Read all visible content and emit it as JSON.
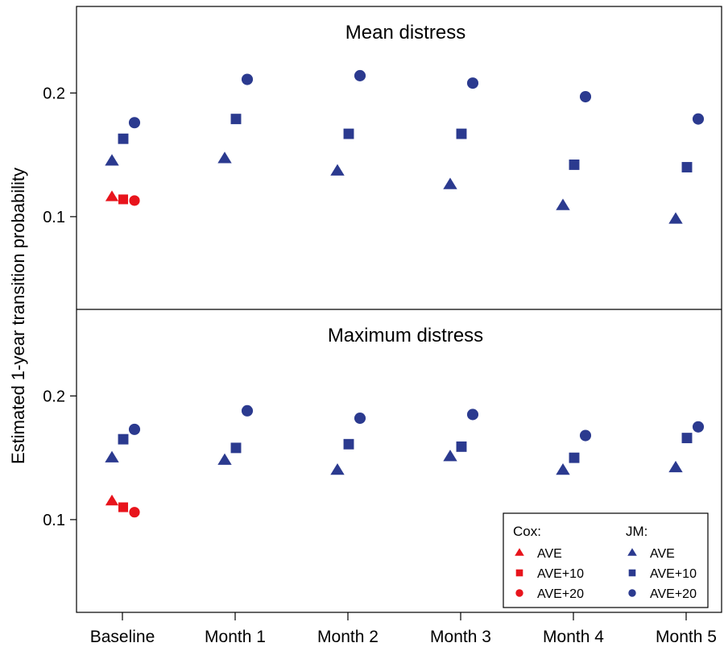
{
  "chart_data": {
    "type": "scatter",
    "ylabel": "Estimated 1-year transition probability",
    "categories": [
      "Baseline",
      "Month 1",
      "Month 2",
      "Month 3",
      "Month 4",
      "Month 5"
    ],
    "y_ticks": [
      "0.1",
      "0.2"
    ],
    "colors": {
      "cox": "#e8141c",
      "jm": "#2b3a8f"
    },
    "panels": [
      {
        "title": "Mean distress",
        "ylim": [
          0.025,
          0.27
        ],
        "series": [
          {
            "model": "jm",
            "label": "AVE",
            "marker": "triangle",
            "values": [
              0.145,
              0.147,
              0.137,
              0.126,
              0.109,
              0.098
            ]
          },
          {
            "model": "jm",
            "label": "AVE+10",
            "marker": "square",
            "values": [
              0.163,
              0.179,
              0.167,
              0.167,
              0.142,
              0.14
            ]
          },
          {
            "model": "jm",
            "label": "AVE+20",
            "marker": "circle",
            "values": [
              0.176,
              0.211,
              0.214,
              0.208,
              0.197,
              0.179
            ]
          },
          {
            "model": "cox",
            "label": "AVE",
            "marker": "triangle",
            "values": [
              0.116
            ]
          },
          {
            "model": "cox",
            "label": "AVE+10",
            "marker": "square",
            "values": [
              0.114
            ]
          },
          {
            "model": "cox",
            "label": "AVE+20",
            "marker": "circle",
            "values": [
              0.113
            ]
          }
        ]
      },
      {
        "title": "Maximum distress",
        "ylim": [
          0.025,
          0.27
        ],
        "series": [
          {
            "model": "jm",
            "label": "AVE",
            "marker": "triangle",
            "values": [
              0.15,
              0.148,
              0.14,
              0.151,
              0.14,
              0.142
            ]
          },
          {
            "model": "jm",
            "label": "AVE+10",
            "marker": "square",
            "values": [
              0.165,
              0.158,
              0.161,
              0.159,
              0.15,
              0.166
            ]
          },
          {
            "model": "jm",
            "label": "AVE+20",
            "marker": "circle",
            "values": [
              0.173,
              0.188,
              0.182,
              0.185,
              0.168,
              0.175
            ]
          },
          {
            "model": "cox",
            "label": "AVE",
            "marker": "triangle",
            "values": [
              0.115
            ]
          },
          {
            "model": "cox",
            "label": "AVE+10",
            "marker": "square",
            "values": [
              0.11
            ]
          },
          {
            "model": "cox",
            "label": "AVE+20",
            "marker": "circle",
            "values": [
              0.106
            ]
          }
        ]
      }
    ],
    "legend": {
      "placement": "bottom-right",
      "groups": [
        {
          "title": "Cox:",
          "model": "cox",
          "items": [
            {
              "label": "AVE",
              "marker": "triangle"
            },
            {
              "label": "AVE+10",
              "marker": "square"
            },
            {
              "label": "AVE+20",
              "marker": "circle"
            }
          ]
        },
        {
          "title": "JM:",
          "model": "jm",
          "items": [
            {
              "label": "AVE",
              "marker": "triangle"
            },
            {
              "label": "AVE+10",
              "marker": "square"
            },
            {
              "label": "AVE+20",
              "marker": "circle"
            }
          ]
        }
      ]
    }
  }
}
